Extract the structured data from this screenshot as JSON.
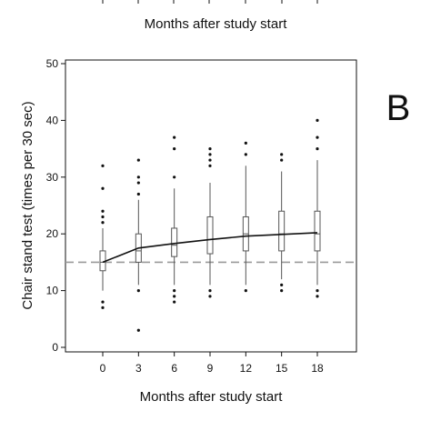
{
  "panel_label": "B",
  "top_strip": {
    "xlabel": "Months after study start"
  },
  "chart_data": {
    "type": "box",
    "xlabel": "Months after study start",
    "ylabel": "Chair stand test (times per 30 sec)",
    "categories": [
      "0",
      "3",
      "6",
      "9",
      "12",
      "15",
      "18"
    ],
    "x": [
      0,
      3,
      6,
      9,
      12,
      15,
      18
    ],
    "xlim": [
      -3,
      21
    ],
    "ylim": [
      0,
      50
    ],
    "yticks": [
      0,
      10,
      20,
      30,
      40,
      50
    ],
    "reference_line": {
      "y": 15,
      "style": "dashed",
      "color": "#9a9a9a"
    },
    "mean_line": {
      "values": [
        15,
        17.5,
        18.3,
        19,
        19.6,
        19.9,
        20.2
      ],
      "color": "#111111"
    },
    "boxes": [
      {
        "x": 0,
        "q1": 13.5,
        "median": 15,
        "q3": 17,
        "whisker_low": 10,
        "whisker_high": 21,
        "outliers": [
          7,
          8,
          22,
          23,
          24,
          28,
          32
        ]
      },
      {
        "x": 3,
        "q1": 15,
        "median": 17,
        "q3": 20,
        "whisker_low": 11,
        "whisker_high": 26,
        "outliers": [
          3,
          10,
          27,
          29,
          30,
          33
        ]
      },
      {
        "x": 6,
        "q1": 16,
        "median": 18,
        "q3": 21,
        "whisker_low": 11,
        "whisker_high": 28,
        "outliers": [
          8,
          9,
          10,
          30,
          35,
          37
        ]
      },
      {
        "x": 9,
        "q1": 16.5,
        "median": 19,
        "q3": 23,
        "whisker_low": 11,
        "whisker_high": 29,
        "outliers": [
          9,
          10,
          32,
          33,
          34,
          35
        ]
      },
      {
        "x": 12,
        "q1": 17,
        "median": 20,
        "q3": 23,
        "whisker_low": 11,
        "whisker_high": 32,
        "outliers": [
          10,
          34,
          36
        ]
      },
      {
        "x": 15,
        "q1": 17,
        "median": 20,
        "q3": 24,
        "whisker_low": 12,
        "whisker_high": 31,
        "outliers": [
          10,
          11,
          33,
          34
        ]
      },
      {
        "x": 18,
        "q1": 17,
        "median": 20,
        "q3": 24,
        "whisker_low": 11,
        "whisker_high": 33,
        "outliers": [
          9,
          10,
          35,
          37,
          40
        ]
      }
    ],
    "colors": {
      "axis": "#111111",
      "box": "#555555",
      "points": "#111111",
      "reference": "#9a9a9a"
    }
  }
}
